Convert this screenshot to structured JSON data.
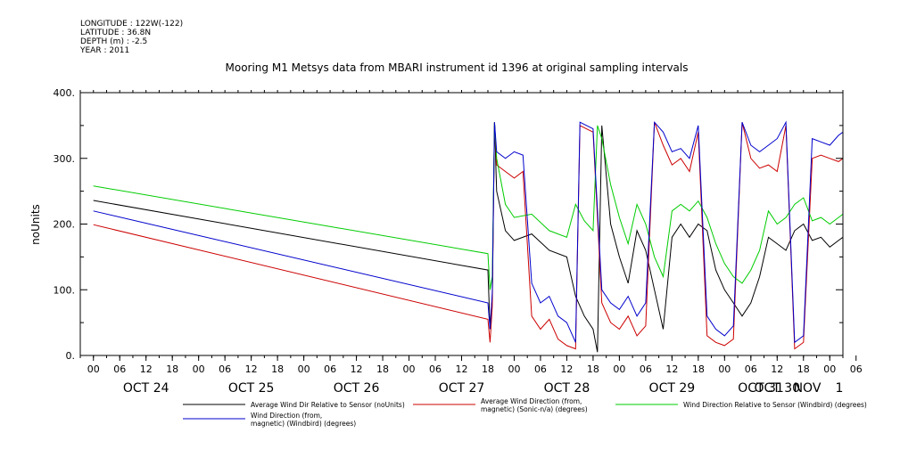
{
  "meta": {
    "longitude": "LONGITUDE : 122W(-122)",
    "latitude": "LATITUDE : 36.8N",
    "depth": "DEPTH (m) : -2.5",
    "year": "YEAR : 2011"
  },
  "chart_data": {
    "type": "line",
    "title": "Mooring M1 Metsys data from MBARI instrument id 1396 at original sampling intervals",
    "ylabel": "noUnits",
    "xlabel": "",
    "ylim": [
      0,
      400
    ],
    "yticks": [
      0,
      100,
      200,
      300,
      400
    ],
    "ytick_labels": [
      "0.",
      "100.",
      "200.",
      "300.",
      "400."
    ],
    "xlim": [
      -3,
      171
    ],
    "x_unit": "hours from OCT 24 00:00",
    "hour_ticks": [
      {
        "x": 0,
        "label": "00"
      },
      {
        "x": 6,
        "label": "06"
      },
      {
        "x": 12,
        "label": "12"
      },
      {
        "x": 18,
        "label": "18"
      },
      {
        "x": 24,
        "label": "00"
      },
      {
        "x": 30,
        "label": "06"
      },
      {
        "x": 36,
        "label": "12"
      },
      {
        "x": 42,
        "label": "18"
      },
      {
        "x": 48,
        "label": "00"
      },
      {
        "x": 54,
        "label": "06"
      },
      {
        "x": 60,
        "label": "12"
      },
      {
        "x": 66,
        "label": "18"
      },
      {
        "x": 72,
        "label": "00"
      },
      {
        "x": 78,
        "label": "06"
      },
      {
        "x": 84,
        "label": "12"
      },
      {
        "x": 90,
        "label": "18"
      },
      {
        "x": 96,
        "label": "00"
      },
      {
        "x": 102,
        "label": "06"
      },
      {
        "x": 108,
        "label": "12"
      },
      {
        "x": 114,
        "label": "18"
      },
      {
        "x": 120,
        "label": "00"
      },
      {
        "x": 126,
        "label": "06"
      },
      {
        "x": 132,
        "label": "12"
      },
      {
        "x": 138,
        "label": "18"
      },
      {
        "x": 144,
        "label": "00"
      },
      {
        "x": 150,
        "label": "06"
      },
      {
        "x": 156,
        "label": "12"
      },
      {
        "x": 162,
        "label": "18"
      },
      {
        "x": 168,
        "label": "00"
      },
      {
        "x": 174,
        "label": "06"
      }
    ],
    "day_labels": [
      {
        "x": 12,
        "label": "OCT 24"
      },
      {
        "x": 36,
        "label": "OCT 25"
      },
      {
        "x": 60,
        "label": "OCT 26"
      },
      {
        "x": 84,
        "label": "OCT 27"
      },
      {
        "x": 108,
        "label": "OCT 28"
      },
      {
        "x": 132,
        "label": "OCT 29"
      },
      {
        "x": 156,
        "label": "OCT 30"
      },
      {
        "x": 180,
        "label": "OCT 31"
      },
      {
        "x": 191,
        "label": "NOV"
      },
      {
        "x": 201,
        "label": "1"
      }
    ],
    "series": [
      {
        "name": "Average Wind Dir Relative to Sensor (noUnits)",
        "color": "#000000",
        "points": [
          [
            0,
            236
          ],
          [
            90,
            130
          ],
          [
            90.5,
            40
          ],
          [
            91,
            90
          ],
          [
            91.5,
            355
          ],
          [
            92,
            250
          ],
          [
            94,
            190
          ],
          [
            96,
            175
          ],
          [
            100,
            185
          ],
          [
            104,
            160
          ],
          [
            108,
            150
          ],
          [
            110,
            90
          ],
          [
            112,
            60
          ],
          [
            114,
            40
          ],
          [
            115,
            5
          ],
          [
            116,
            350
          ],
          [
            118,
            200
          ],
          [
            120,
            150
          ],
          [
            122,
            110
          ],
          [
            124,
            190
          ],
          [
            126,
            160
          ],
          [
            128,
            100
          ],
          [
            130,
            40
          ],
          [
            132,
            180
          ],
          [
            134,
            200
          ],
          [
            136,
            180
          ],
          [
            138,
            200
          ],
          [
            140,
            190
          ],
          [
            142,
            130
          ],
          [
            144,
            100
          ],
          [
            146,
            80
          ],
          [
            148,
            60
          ],
          [
            150,
            80
          ],
          [
            152,
            120
          ],
          [
            154,
            180
          ],
          [
            156,
            170
          ],
          [
            158,
            160
          ],
          [
            160,
            190
          ],
          [
            162,
            200
          ],
          [
            164,
            175
          ],
          [
            166,
            180
          ],
          [
            168,
            165
          ],
          [
            170,
            175
          ],
          [
            171,
            180
          ]
        ]
      },
      {
        "name": "Average Wind Direction (from, magnetic) (Sonic-n/a) (degrees)",
        "color": "#cc0000",
        "points": [
          [
            0,
            199
          ],
          [
            90,
            55
          ],
          [
            90.5,
            20
          ],
          [
            91,
            75
          ],
          [
            91.5,
            355
          ],
          [
            92,
            290
          ],
          [
            94,
            280
          ],
          [
            96,
            270
          ],
          [
            98,
            280
          ],
          [
            100,
            60
          ],
          [
            102,
            40
          ],
          [
            104,
            55
          ],
          [
            106,
            25
          ],
          [
            108,
            15
          ],
          [
            110,
            10
          ],
          [
            111,
            350
          ],
          [
            114,
            340
          ],
          [
            116,
            80
          ],
          [
            118,
            50
          ],
          [
            120,
            40
          ],
          [
            122,
            60
          ],
          [
            124,
            30
          ],
          [
            126,
            45
          ],
          [
            128,
            355
          ],
          [
            130,
            320
          ],
          [
            132,
            290
          ],
          [
            134,
            300
          ],
          [
            136,
            280
          ],
          [
            138,
            340
          ],
          [
            140,
            30
          ],
          [
            142,
            20
          ],
          [
            144,
            15
          ],
          [
            146,
            25
          ],
          [
            148,
            355
          ],
          [
            150,
            300
          ],
          [
            152,
            285
          ],
          [
            154,
            290
          ],
          [
            156,
            280
          ],
          [
            158,
            350
          ],
          [
            160,
            10
          ],
          [
            162,
            20
          ],
          [
            164,
            300
          ],
          [
            166,
            305
          ],
          [
            168,
            300
          ],
          [
            170,
            295
          ],
          [
            171,
            300
          ]
        ]
      },
      {
        "name": "Wind Direction Relative to Sensor (Windbird) (degrees)",
        "color": "#00cc00",
        "points": [
          [
            0,
            258
          ],
          [
            90,
            155
          ],
          [
            90.5,
            100
          ],
          [
            91,
            120
          ],
          [
            91.5,
            355
          ],
          [
            92,
            300
          ],
          [
            94,
            230
          ],
          [
            96,
            210
          ],
          [
            100,
            215
          ],
          [
            104,
            190
          ],
          [
            108,
            180
          ],
          [
            110,
            230
          ],
          [
            112,
            205
          ],
          [
            114,
            190
          ],
          [
            115,
            350
          ],
          [
            116,
            330
          ],
          [
            118,
            260
          ],
          [
            120,
            210
          ],
          [
            122,
            170
          ],
          [
            124,
            230
          ],
          [
            126,
            200
          ],
          [
            128,
            150
          ],
          [
            130,
            120
          ],
          [
            132,
            220
          ],
          [
            134,
            230
          ],
          [
            136,
            220
          ],
          [
            138,
            235
          ],
          [
            140,
            210
          ],
          [
            142,
            170
          ],
          [
            144,
            140
          ],
          [
            146,
            120
          ],
          [
            148,
            110
          ],
          [
            150,
            130
          ],
          [
            152,
            160
          ],
          [
            154,
            220
          ],
          [
            156,
            200
          ],
          [
            158,
            210
          ],
          [
            160,
            230
          ],
          [
            162,
            240
          ],
          [
            164,
            205
          ],
          [
            166,
            210
          ],
          [
            168,
            200
          ],
          [
            170,
            210
          ],
          [
            171,
            215
          ]
        ]
      },
      {
        "name": "Wind Direction (from, magnetic) (Windbird) (degrees)",
        "color": "#0000cc",
        "points": [
          [
            0,
            220
          ],
          [
            90,
            80
          ],
          [
            90.5,
            40
          ],
          [
            91,
            95
          ],
          [
            91.5,
            355
          ],
          [
            92,
            310
          ],
          [
            94,
            300
          ],
          [
            96,
            310
          ],
          [
            98,
            305
          ],
          [
            100,
            110
          ],
          [
            102,
            80
          ],
          [
            104,
            90
          ],
          [
            106,
            60
          ],
          [
            108,
            50
          ],
          [
            110,
            20
          ],
          [
            111,
            355
          ],
          [
            114,
            345
          ],
          [
            116,
            100
          ],
          [
            118,
            80
          ],
          [
            120,
            70
          ],
          [
            122,
            90
          ],
          [
            124,
            60
          ],
          [
            126,
            80
          ],
          [
            128,
            355
          ],
          [
            130,
            340
          ],
          [
            132,
            310
          ],
          [
            134,
            315
          ],
          [
            136,
            300
          ],
          [
            138,
            350
          ],
          [
            140,
            60
          ],
          [
            142,
            40
          ],
          [
            144,
            30
          ],
          [
            146,
            45
          ],
          [
            148,
            355
          ],
          [
            150,
            320
          ],
          [
            152,
            310
          ],
          [
            154,
            320
          ],
          [
            156,
            330
          ],
          [
            158,
            355
          ],
          [
            160,
            20
          ],
          [
            162,
            30
          ],
          [
            164,
            330
          ],
          [
            166,
            325
          ],
          [
            168,
            320
          ],
          [
            170,
            335
          ],
          [
            171,
            340
          ]
        ]
      }
    ],
    "legend": [
      {
        "lines": [
          "Average Wind Dir Relative to Sensor (noUnits)"
        ],
        "color": "#000000"
      },
      {
        "lines": [
          "Average Wind Direction (from,",
          "magnetic) (Sonic-n/a) (degrees)"
        ],
        "color": "#cc0000"
      },
      {
        "lines": [
          "Wind Direction Relative to Sensor (Windbird) (degrees)"
        ],
        "color": "#00cc00"
      },
      {
        "lines": [
          "Wind Direction (from,",
          "magnetic) (Windbird) (degrees)"
        ],
        "color": "#0000cc"
      }
    ]
  }
}
